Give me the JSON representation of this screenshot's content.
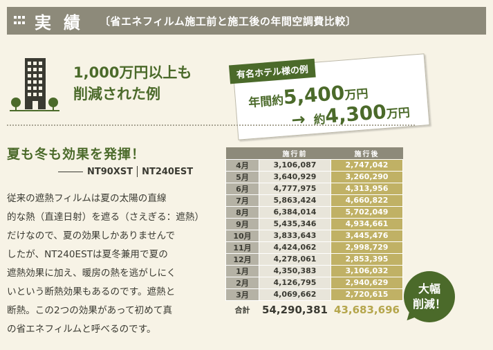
{
  "header": {
    "title": "実績",
    "subtitle": "〔省エネフィルム施工前と施工後の年間空調費比較〕"
  },
  "headline": {
    "line1": "1,000万円以上も",
    "line2": "削減された例"
  },
  "hotel": {
    "label": "有名ホテル様の例",
    "line1_prefix": "年間約",
    "line1_value": "5,400",
    "line1_unit": "万円",
    "line2_arrow": "→",
    "line2_prefix": "約",
    "line2_value": "4,300",
    "line2_unit": "万円"
  },
  "section": {
    "title": "夏も冬も効果を発揮！",
    "product_a": "NT90XST",
    "product_b": "NT240EST",
    "body_lines": [
      "従来の遮熱フィルムは夏の太陽の直線",
      "的な熱（直達日射）を遮る（さえぎる：遮熱）",
      "だけなので、夏の効果しかありませんで",
      "したが、NT240ESTは夏冬兼用で夏の",
      "遮熱効果に加え、暖房の熱を逃がしにく",
      "いという断熱効果もあるのです。遮熱と",
      "断熱。この2つの効果があって初めて真",
      "の省エネフィルムと呼べるのです。"
    ]
  },
  "table": {
    "col_before": "施行前",
    "col_after": "施行後",
    "rows": [
      {
        "month": "4月",
        "before": "3,106,087",
        "after": "2,747,042"
      },
      {
        "month": "5月",
        "before": "3,640,929",
        "after": "3,260,290"
      },
      {
        "month": "6月",
        "before": "4,777,975",
        "after": "4,313,956"
      },
      {
        "month": "7月",
        "before": "5,863,424",
        "after": "4,660,822"
      },
      {
        "month": "8月",
        "before": "6,384,014",
        "after": "5,702,049"
      },
      {
        "month": "9月",
        "before": "5,435,346",
        "after": "4,934,661"
      },
      {
        "month": "10月",
        "before": "3,833,643",
        "after": "3,445,476"
      },
      {
        "month": "11月",
        "before": "4,424,062",
        "after": "2,998,729"
      },
      {
        "month": "12月",
        "before": "4,278,061",
        "after": "2,853,395"
      },
      {
        "month": "1月",
        "before": "4,350,383",
        "after": "3,106,032"
      },
      {
        "month": "2月",
        "before": "4,126,795",
        "after": "2,940,629"
      },
      {
        "month": "3月",
        "before": "4,069,662",
        "after": "2,720,615"
      }
    ],
    "total_label": "合計",
    "total_before": "54,290,381",
    "total_after": "43,683,696"
  },
  "badge": {
    "line1": "大幅",
    "line2": "削減！"
  },
  "colors": {
    "accent_green": "#4b6a2a",
    "header_gray": "#8d8a7a",
    "after_gold": "#c0b165"
  }
}
